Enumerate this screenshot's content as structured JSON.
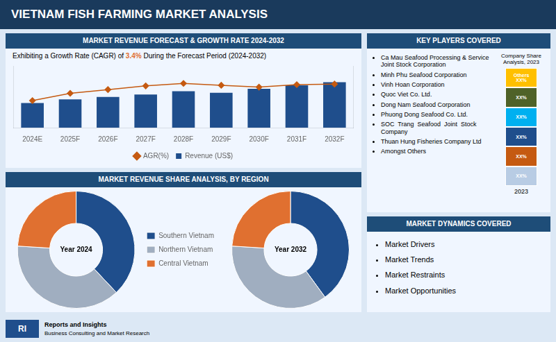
{
  "title": "VIETNAM FISH FARMING MARKET ANALYSIS",
  "chart_data": [
    {
      "type": "bar",
      "title": "MARKET REVENUE FORECAST & GROWTH RATE 2024-2032",
      "subtitle": [
        {
          "text": "Exhibiting a Growth Rate (CAGR) of "
        },
        {
          "text": "3.4%",
          "color": "#e07030"
        },
        {
          "text": " During the Forecast Period (2024-2032)"
        }
      ],
      "categories": [
        "2024E",
        "2025F",
        "2026F",
        "2027F",
        "2028F",
        "2029F",
        "2030F",
        "2031F",
        "2032F"
      ],
      "series": [
        {
          "name": "Revenue (US$)",
          "type": "bar",
          "color": "#1f4e8c",
          "values": [
            1.0,
            1.15,
            1.25,
            1.35,
            1.48,
            1.42,
            1.58,
            1.72,
            1.85
          ]
        },
        {
          "name": "AGR(%)",
          "type": "line",
          "color": "#c55a11",
          "marker": "diamond",
          "axis": "y2",
          "values": [
            2.2,
            2.8,
            3.1,
            3.4,
            3.6,
            3.45,
            3.3,
            3.5,
            3.55
          ]
        }
      ],
      "ylim": [
        0,
        2.5
      ],
      "y2lim": [
        0,
        5
      ],
      "grid": false,
      "legend": "bottom",
      "tick_labels": "x"
    },
    {
      "type": "doughnut",
      "title": "MARKET REVENUE SHARE ANALYSIS, BY REGION",
      "annotations": [
        "Year 2024"
      ],
      "categories": [
        "Southern Vietnam",
        "Northern Vietnam",
        "Central Vietnam"
      ],
      "values": [
        0.38,
        0.38,
        0.24
      ],
      "colors": [
        "#1f4e8c",
        "#a0aec0",
        "#e07030"
      ],
      "legend": "right"
    },
    {
      "type": "doughnut",
      "annotations": [
        "Year 2032"
      ],
      "categories": [
        "Southern Vietnam",
        "Northern Vietnam",
        "Central Vietnam"
      ],
      "values": [
        0.4,
        0.36,
        0.24
      ],
      "colors": [
        "#1f4e8c",
        "#a0aec0",
        "#e07030"
      ]
    }
  ],
  "annotations": [
    {
      "title": "KEY PLAYERS COVERED",
      "items": [
        "Ca Mau Seafood Processing & Service\nJoint Stock Corporation",
        "Minh Phu Seafood Corporation",
        "Vinh Hoan Corporation",
        "Quoc Viet Co. Ltd.",
        "Dong Nam Seafood Corporation",
        "Phuong Dong Seafood Co. Ltd.",
        "SOC  Trang  Seafood  Joint  Stock\nCompany",
        "Thuan Hung Fisheries Company Ltd",
        "Amongst Others"
      ],
      "share": {
        "title": "Company Share\nAnalysis, 2023",
        "labels": [
          "XX%",
          "XX%",
          "XX%",
          "XX%",
          "XX%",
          "Others\nXX%"
        ],
        "colors": [
          "#b8cce4",
          "#c55a11",
          "#1f4e8c",
          "#00b0f0",
          "#4f6228",
          "#ffc000"
        ],
        "year": "2023"
      }
    },
    {
      "title": "MARKET DYNAMICS COVERED",
      "items": [
        "Market Drivers",
        "Market Trends",
        "Market Restraints",
        "Market Opportunities"
      ]
    },
    {
      "badge": "RI",
      "items": [
        "Reports and Insights",
        "Business Consulting and Market Research"
      ]
    }
  ]
}
